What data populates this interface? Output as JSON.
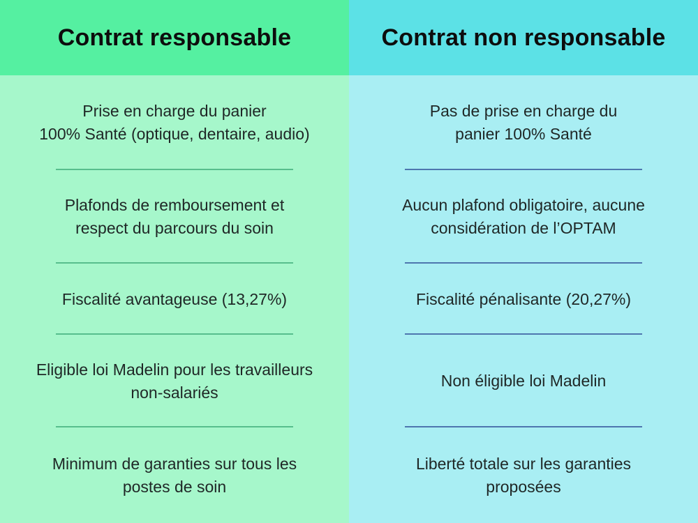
{
  "colors": {
    "left_header_bg": "#55F0A1",
    "left_body_bg": "#A6F7CB",
    "left_divider": "#57BE8D",
    "right_header_bg": "#5CE1E6",
    "right_body_bg": "#A9EEF3",
    "right_divider": "#4E76AE",
    "header_text": "#0D0D0D",
    "body_text": "#1F2726"
  },
  "columns": [
    {
      "header": "Contrat responsable",
      "rows": [
        {
          "text": "Prise en charge du panier\n100% Santé (optique, dentaire, audio)"
        },
        {
          "text": "Plafonds de remboursement et\nrespect du parcours du soin"
        },
        {
          "text": "Fiscalité avantageuse (13,27%)"
        },
        {
          "text": "Eligible loi Madelin pour les travailleurs\nnon-salariés"
        },
        {
          "text": "Minimum de garanties sur tous les\npostes de soin"
        }
      ]
    },
    {
      "header": "Contrat non responsable",
      "rows": [
        {
          "text": "Pas de prise en charge du\npanier 100% Santé"
        },
        {
          "text": "Aucun plafond obligatoire, aucune\nconsidération de l’OPTAM"
        },
        {
          "text": "Fiscalité pénalisante (20,27%)"
        },
        {
          "text": "Non éligible loi Madelin"
        },
        {
          "text": "Liberté totale sur les garanties\nproposées"
        }
      ]
    }
  ]
}
